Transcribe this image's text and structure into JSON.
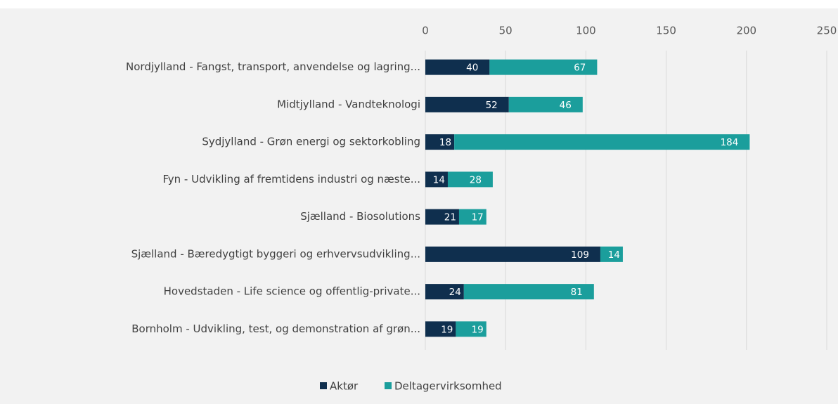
{
  "chart_data": {
    "type": "stacked-bar-horizontal",
    "categories": [
      "Nordjylland - Fangst, transport, anvendelse og lagring...",
      "Midtjylland - Vandteknologi",
      "Sydjylland - Grøn energi og sektorkobling",
      "Fyn - Udvikling af fremtidens industri og næste...",
      "Sjælland - Biosolutions",
      "Sjælland - Bæredygtigt byggeri og erhvervsudvikling...",
      "Hovedstaden - Life science og offentlig-private...",
      "Bornholm - Udvikling, test, og demonstration af grøn..."
    ],
    "series": [
      {
        "name": "Aktør",
        "color": "#0f2f4e",
        "values": [
          40,
          52,
          18,
          14,
          21,
          109,
          24,
          19
        ]
      },
      {
        "name": "Deltagervirksomhed",
        "color": "#1b9e9c",
        "values": [
          67,
          46,
          184,
          28,
          17,
          14,
          81,
          19
        ]
      }
    ],
    "xlim": [
      0,
      250
    ],
    "xticks": [
      0,
      50,
      100,
      150,
      200,
      250
    ],
    "grid": true,
    "legend": "bottom"
  }
}
